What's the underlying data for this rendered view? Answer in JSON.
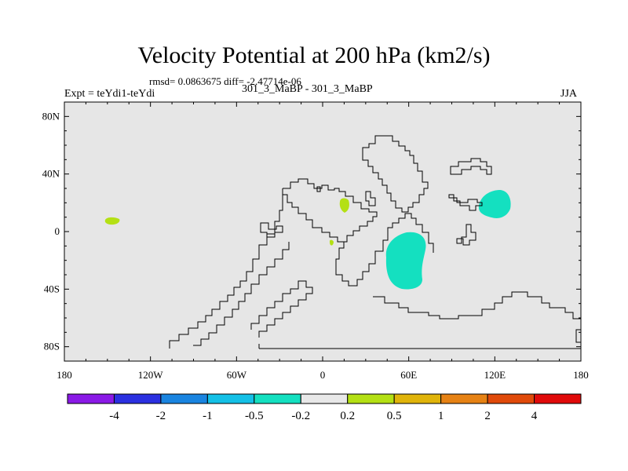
{
  "title": "Velocity Potential at 200 hPa (km2/s)",
  "stats": "rmsd= 0.0863675 diff= -2.47714e-06",
  "expt": "Expt = teYdi1-teYdi",
  "case": "301_3_MaBP - 301_3_MaBP",
  "season": "JJA",
  "axes": {
    "x_ticks": [
      {
        "lon": -180,
        "label": "180"
      },
      {
        "lon": -120,
        "label": "120W"
      },
      {
        "lon": -60,
        "label": "60W"
      },
      {
        "lon": 0,
        "label": "0"
      },
      {
        "lon": 60,
        "label": "60E"
      },
      {
        "lon": 120,
        "label": "120E"
      },
      {
        "lon": 180,
        "label": "180"
      }
    ],
    "y_ticks": [
      {
        "lat": 80,
        "label": "80N"
      },
      {
        "lat": 40,
        "label": "40N"
      },
      {
        "lat": 0,
        "label": "0"
      },
      {
        "lat": -40,
        "label": "40S"
      },
      {
        "lat": -80,
        "label": "80S"
      }
    ],
    "lon_range": [
      -180,
      180
    ],
    "lat_range": [
      -90,
      90
    ]
  },
  "colorbar": {
    "colors": [
      "#8a1ae6",
      "#2b30e0",
      "#1a84e0",
      "#14c0e6",
      "#14e0c0",
      "#e8e8e8",
      "#b4e014",
      "#e0b40a",
      "#e68214",
      "#e04a0a",
      "#e00a0a"
    ],
    "labels": [
      "-4",
      "-2",
      "-1",
      "-0.5",
      "-0.2",
      "0.2",
      "0.5",
      "1",
      "2",
      "4"
    ]
  },
  "colors": {
    "background": "#e6e6e6",
    "negative_anomaly": "#14e0c0",
    "positive_anomaly": "#b4e014",
    "coastline": "#000000"
  }
}
